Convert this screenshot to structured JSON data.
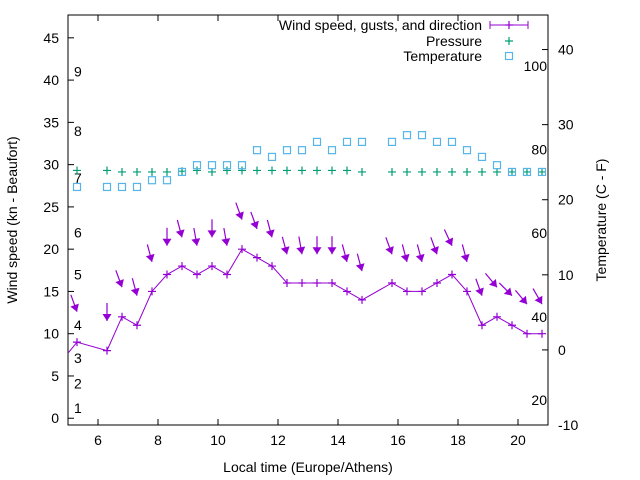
{
  "chart_data": {
    "type": "line",
    "title": "",
    "xlabel": "Local time (Europe/Athens)",
    "ylabel": "Wind speed (kn - Beaufort)",
    "y2label": "Temperature (C - F)",
    "xlim": [
      5,
      21
    ],
    "ylim": [
      -0.8,
      47.7
    ],
    "y2lim": [
      -10,
      44.6
    ],
    "grid": false,
    "legend_placement": "top-right",
    "x_ticks": [
      6,
      8,
      10,
      12,
      14,
      16,
      18,
      20
    ],
    "y_ticks": [
      0,
      5,
      10,
      15,
      20,
      25,
      30,
      35,
      40,
      45
    ],
    "y2_ticks": [
      -10,
      0,
      10,
      20,
      30,
      40
    ],
    "beaufort_labels": [
      {
        "label": "1",
        "kn": 1.2
      },
      {
        "label": "2",
        "kn": 4.1
      },
      {
        "label": "3",
        "kn": 7.1
      },
      {
        "label": "4",
        "kn": 11
      },
      {
        "label": "5",
        "kn": 17
      },
      {
        "label": "6",
        "kn": 22
      },
      {
        "label": "7",
        "kn": 28.4
      },
      {
        "label": "8",
        "kn": 34
      },
      {
        "label": "9",
        "kn": 41
      }
    ],
    "fahrenheit_labels": [
      {
        "label": "100",
        "c": 37.8
      },
      {
        "label": "80",
        "c": 26.7
      },
      {
        "label": "60",
        "c": 15.6
      },
      {
        "label": "40",
        "c": 4.4
      },
      {
        "label": "20",
        "c": -6.7
      }
    ],
    "series": [
      {
        "name": "Wind speed, gusts, and direction",
        "color": "#9400d3",
        "x": [
          5.0,
          5.3,
          6.3,
          6.8,
          7.3,
          7.8,
          8.3,
          8.8,
          9.3,
          9.8,
          10.3,
          10.8,
          11.3,
          11.8,
          12.3,
          12.8,
          13.3,
          13.8,
          14.3,
          14.8,
          15.8,
          16.3,
          16.8,
          17.3,
          17.8,
          18.3,
          18.8,
          19.3,
          19.8,
          20.3,
          20.8
        ],
        "values": [
          7.7,
          9,
          8,
          12,
          11,
          15,
          17,
          18,
          17,
          18,
          17,
          20,
          19,
          18,
          16,
          16,
          16,
          16,
          15,
          14,
          16,
          15,
          15,
          16,
          17,
          15,
          11,
          12,
          11,
          10,
          10
        ],
        "gusts_x": [
          5.3,
          6.3,
          6.8,
          7.3,
          7.8,
          8.3,
          8.8,
          9.3,
          9.8,
          10.3,
          10.8,
          11.3,
          11.8,
          12.3,
          12.8,
          13.3,
          13.8,
          14.3,
          14.8,
          15.8,
          16.3,
          16.8,
          17.3,
          17.8,
          18.3,
          18.8,
          19.3,
          19.8,
          20.3,
          20.8
        ],
        "gusts": [
          12.6,
          11.5,
          15.5,
          14.5,
          18.5,
          20.4,
          21.4,
          20.4,
          21.4,
          20.4,
          23.5,
          22.4,
          21.4,
          19.4,
          19.4,
          19.4,
          19.4,
          18.5,
          17.4,
          19.4,
          18.5,
          18.5,
          19.4,
          20.4,
          18.5,
          14.5,
          15.5,
          14.5,
          13.5,
          13.5
        ],
        "direction_deg": [
          340,
          0,
          340,
          345,
          345,
          0,
          345,
          350,
          0,
          350,
          340,
          340,
          345,
          345,
          350,
          0,
          0,
          345,
          345,
          340,
          345,
          345,
          340,
          335,
          345,
          340,
          320,
          315,
          320,
          330
        ]
      },
      {
        "name": "Pressure",
        "color": "#009e73",
        "axis": "y2",
        "x": [
          5.3,
          6.3,
          6.8,
          7.3,
          7.8,
          8.3,
          8.8,
          9.3,
          9.8,
          10.3,
          10.8,
          11.3,
          11.8,
          12.3,
          12.8,
          13.3,
          13.8,
          14.3,
          14.8,
          15.8,
          16.3,
          16.8,
          17.3,
          17.8,
          18.3,
          18.8,
          19.3,
          19.8,
          20.3,
          20.8
        ],
        "values": [
          23.9,
          23.9,
          23.7,
          23.7,
          23.7,
          23.7,
          23.8,
          23.9,
          23.7,
          23.9,
          23.9,
          23.9,
          23.9,
          23.9,
          23.9,
          23.9,
          23.9,
          23.9,
          23.7,
          23.7,
          23.7,
          23.7,
          23.7,
          23.7,
          23.7,
          23.7,
          23.7,
          23.7,
          23.7,
          23.7
        ]
      },
      {
        "name": "Temperature",
        "color": "#56b4e9",
        "axis": "y2",
        "x": [
          5.3,
          6.3,
          6.8,
          7.3,
          7.8,
          8.3,
          8.8,
          9.3,
          9.8,
          10.3,
          10.8,
          11.3,
          11.8,
          12.3,
          12.8,
          13.3,
          13.8,
          14.3,
          14.8,
          15.8,
          16.3,
          16.8,
          17.3,
          17.8,
          18.3,
          18.8,
          19.3,
          19.8,
          20.3,
          20.8
        ],
        "values": [
          21.7,
          21.7,
          21.7,
          21.7,
          22.6,
          22.6,
          23.7,
          24.6,
          24.6,
          24.6,
          24.6,
          26.6,
          25.7,
          26.6,
          26.6,
          27.7,
          26.6,
          27.7,
          27.7,
          27.7,
          28.6,
          28.6,
          27.7,
          27.7,
          26.6,
          25.7,
          24.6,
          23.7,
          23.7,
          23.7
        ]
      }
    ]
  }
}
